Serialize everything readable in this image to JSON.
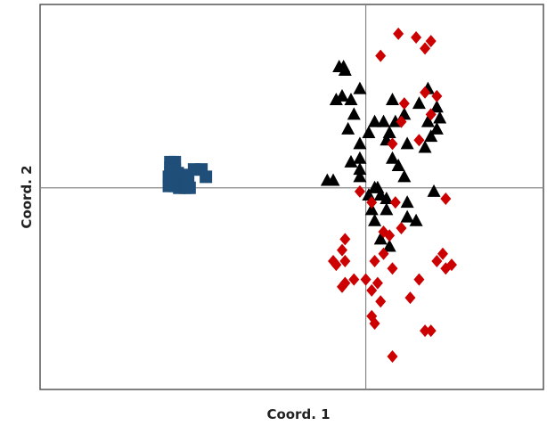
{
  "chart_data": {
    "type": "scatter",
    "title": "",
    "xlabel": "Coord. 1",
    "ylabel": "Coord. 2",
    "xlim": [
      -1.1,
      0.6
    ],
    "ylim": [
      -0.55,
      0.5
    ],
    "grid": false,
    "legend": "none",
    "reference_lines": {
      "x": 0,
      "y": 0
    },
    "series": [
      {
        "marker": "square",
        "color": "#1f4e79",
        "points": [
          [
            -0.66,
            0.07
          ],
          [
            -0.645,
            0.07
          ],
          [
            -0.66,
            0.055
          ],
          [
            -0.645,
            0.05
          ],
          [
            -0.66,
            0.04
          ],
          [
            -0.665,
            0.03
          ],
          [
            -0.65,
            0.025
          ],
          [
            -0.635,
            0.04
          ],
          [
            -0.62,
            0.035
          ],
          [
            -0.625,
            0.02
          ],
          [
            -0.645,
            0.005
          ],
          [
            -0.665,
            0.005
          ],
          [
            -0.63,
            0.0
          ],
          [
            -0.61,
            0.0
          ],
          [
            -0.6,
            0.02
          ],
          [
            -0.595,
            0.0
          ],
          [
            -0.605,
            0.005
          ],
          [
            -0.555,
            0.05
          ],
          [
            -0.58,
            0.05
          ],
          [
            -0.54,
            0.03
          ]
        ]
      },
      {
        "marker": "triangle",
        "color": "#000000",
        "points": [
          [
            -0.09,
            0.33
          ],
          [
            -0.075,
            0.33
          ],
          [
            -0.07,
            0.32
          ],
          [
            -0.1,
            0.24
          ],
          [
            -0.08,
            0.25
          ],
          [
            -0.05,
            0.24
          ],
          [
            -0.02,
            0.27
          ],
          [
            -0.04,
            0.2
          ],
          [
            0.03,
            0.18
          ],
          [
            0.09,
            0.24
          ],
          [
            0.13,
            0.2
          ],
          [
            0.08,
            0.15
          ],
          [
            0.07,
            0.13
          ],
          [
            0.01,
            0.15
          ],
          [
            0.06,
            0.18
          ],
          [
            0.1,
            0.18
          ],
          [
            -0.02,
            0.12
          ],
          [
            -0.06,
            0.16
          ],
          [
            -0.02,
            0.08
          ],
          [
            -0.05,
            0.07
          ],
          [
            -0.13,
            0.02
          ],
          [
            -0.11,
            0.02
          ],
          [
            -0.02,
            0.03
          ],
          [
            0.03,
            0.0
          ],
          [
            -0.02,
            0.05
          ],
          [
            0.01,
            -0.02
          ],
          [
            0.04,
            0.0
          ],
          [
            0.05,
            -0.02
          ],
          [
            0.07,
            -0.03
          ],
          [
            0.09,
            0.08
          ],
          [
            0.11,
            0.06
          ],
          [
            0.14,
            0.12
          ],
          [
            0.18,
            0.23
          ],
          [
            0.21,
            0.27
          ],
          [
            0.21,
            0.18
          ],
          [
            0.22,
            0.14
          ],
          [
            0.2,
            0.11
          ],
          [
            0.24,
            0.22
          ],
          [
            0.25,
            0.19
          ],
          [
            0.24,
            0.16
          ],
          [
            0.13,
            0.03
          ],
          [
            0.07,
            -0.06
          ],
          [
            0.14,
            -0.04
          ],
          [
            0.23,
            -0.01
          ],
          [
            0.02,
            -0.06
          ],
          [
            0.03,
            -0.09
          ],
          [
            0.05,
            -0.14
          ],
          [
            0.08,
            -0.16
          ],
          [
            0.14,
            -0.08
          ],
          [
            0.17,
            -0.09
          ]
        ]
      },
      {
        "marker": "diamond",
        "color": "#cc0000",
        "points": [
          [
            0.11,
            0.42
          ],
          [
            0.05,
            0.36
          ],
          [
            0.17,
            0.41
          ],
          [
            0.22,
            0.4
          ],
          [
            0.2,
            0.38
          ],
          [
            0.2,
            0.26
          ],
          [
            0.22,
            0.2
          ],
          [
            0.13,
            0.23
          ],
          [
            0.24,
            0.25
          ],
          [
            0.12,
            0.18
          ],
          [
            0.09,
            0.12
          ],
          [
            0.18,
            0.13
          ],
          [
            -0.02,
            -0.01
          ],
          [
            0.02,
            -0.04
          ],
          [
            0.27,
            -0.03
          ],
          [
            0.1,
            -0.04
          ],
          [
            0.12,
            -0.11
          ],
          [
            0.08,
            -0.13
          ],
          [
            0.06,
            -0.12
          ],
          [
            -0.07,
            -0.14
          ],
          [
            -0.08,
            -0.17
          ],
          [
            -0.11,
            -0.2
          ],
          [
            -0.07,
            -0.2
          ],
          [
            -0.1,
            -0.21
          ],
          [
            0.03,
            -0.2
          ],
          [
            0.06,
            -0.18
          ],
          [
            0.09,
            -0.22
          ],
          [
            -0.04,
            -0.25
          ],
          [
            0.0,
            -0.25
          ],
          [
            -0.07,
            -0.26
          ],
          [
            0.02,
            -0.28
          ],
          [
            0.04,
            -0.26
          ],
          [
            0.05,
            -0.31
          ],
          [
            0.02,
            -0.35
          ],
          [
            0.18,
            -0.25
          ],
          [
            0.24,
            -0.2
          ],
          [
            0.29,
            -0.21
          ],
          [
            0.26,
            -0.18
          ],
          [
            0.27,
            -0.22
          ],
          [
            0.15,
            -0.3
          ],
          [
            0.2,
            -0.39
          ],
          [
            0.22,
            -0.39
          ],
          [
            0.09,
            -0.46
          ],
          [
            -0.08,
            -0.27
          ],
          [
            0.03,
            -0.37
          ]
        ]
      }
    ]
  }
}
